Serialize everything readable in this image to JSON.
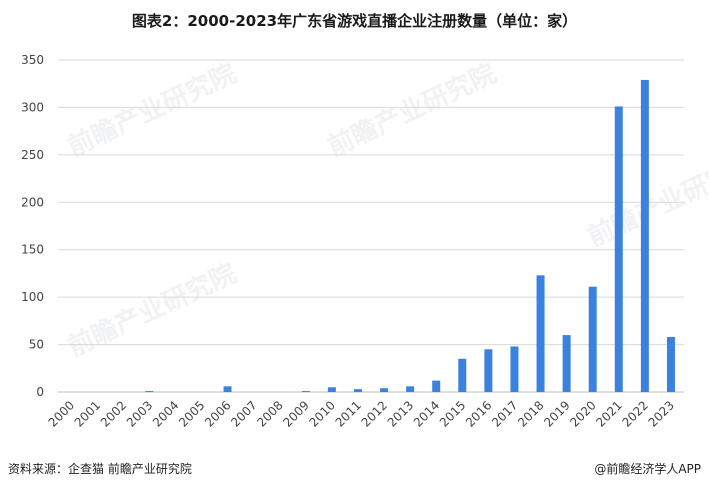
{
  "title": "图表2：2000-2023年广东省游戏直播企业注册数量（单位：家）",
  "source": "资料来源：企查猫 前瞻产业研究院",
  "brand": "@前瞻经济学人APP",
  "watermark": "前瞻产业研究院",
  "colors": {
    "bar": "#3b82e0",
    "grid": "#d9d9d9",
    "axis": "#666666"
  },
  "chart_data": {
    "type": "bar",
    "title": "图表2：2000-2023年广东省游戏直播企业注册数量（单位：家）",
    "categories": [
      "2000",
      "2001",
      "2002",
      "2003",
      "2004",
      "2005",
      "2006",
      "2007",
      "2008",
      "2009",
      "2010",
      "2011",
      "2012",
      "2013",
      "2014",
      "2015",
      "2016",
      "2017",
      "2018",
      "2019",
      "2020",
      "2021",
      "2022",
      "2023"
    ],
    "values": [
      0,
      0,
      0,
      1,
      0,
      0,
      6,
      0,
      0,
      1,
      5,
      3,
      4,
      6,
      12,
      35,
      45,
      48,
      123,
      60,
      111,
      301,
      329,
      58
    ],
    "ylim": [
      0,
      350
    ],
    "yticks": [
      0,
      50,
      100,
      150,
      200,
      250,
      300,
      350
    ],
    "grid": true,
    "xlabel": "",
    "ylabel": ""
  }
}
